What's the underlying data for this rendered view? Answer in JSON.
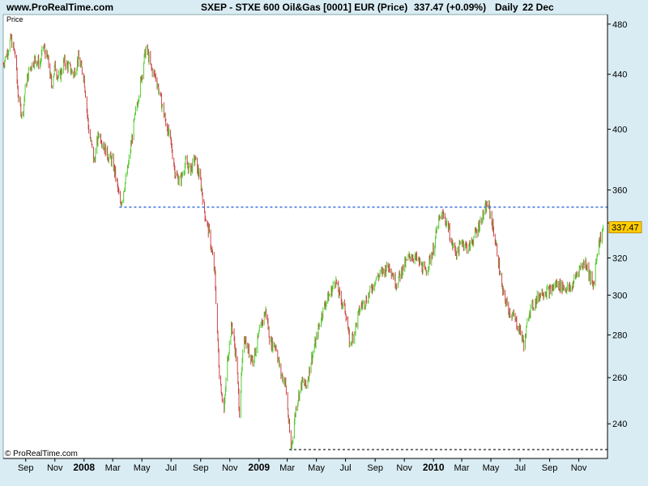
{
  "header": {
    "site": "www.ProRealTime.com",
    "instrument": "SXEP - STXE 600 Oil&Gas [0001] EUR (Price)",
    "last_change": "337.47 (+0.09%)",
    "period": "Daily",
    "date": "22 Dec"
  },
  "panel_label": "Price",
  "copyright": "© ProRealTime.com",
  "colors": {
    "up": "#55cc33",
    "down": "#cc4444",
    "support_line": "#4477dd",
    "low_line": "#555555",
    "price_tag": "#ffcc00",
    "background": "#d9ecf3",
    "plot": "#ffffff"
  },
  "chart_data": {
    "type": "line",
    "title": "SXEP - STXE 600 Oil&Gas [0001] EUR (Price)",
    "ylim": [
      226,
      488
    ],
    "y_ticks": [
      240,
      260,
      280,
      300,
      320,
      340,
      360,
      400,
      440,
      480
    ],
    "y_tick_labels": [
      "240",
      "260",
      "280",
      "300",
      "320",
      "",
      "360",
      "400",
      "440",
      "480"
    ],
    "x_tick_labels": [
      "Sep",
      "Nov",
      "2008",
      "Mar",
      "May",
      "Jul",
      "Sep",
      "Nov",
      "2009",
      "Mar",
      "May",
      "Jul",
      "Sep",
      "Nov",
      "2010",
      "Mar",
      "May",
      "Jul",
      "Sep",
      "Nov"
    ],
    "x_tick_bold": [
      false,
      false,
      true,
      false,
      false,
      false,
      false,
      false,
      true,
      false,
      false,
      false,
      false,
      false,
      true,
      false,
      false,
      false,
      false,
      false
    ],
    "x_ticks": [
      "2007-09-01",
      "2007-11-01",
      "2008-01-01",
      "2008-03-01",
      "2008-05-01",
      "2008-07-01",
      "2008-09-01",
      "2008-11-01",
      "2009-01-01",
      "2009-03-01",
      "2009-05-01",
      "2009-07-01",
      "2009-09-01",
      "2009-11-01",
      "2010-01-01",
      "2010-03-01",
      "2010-05-01",
      "2010-07-01",
      "2010-09-01",
      "2010-11-01"
    ],
    "x_range": [
      "2007-07-16",
      "2010-12-31"
    ],
    "last_price": 337.47,
    "last_price_label": "337.47",
    "reference_lines": [
      {
        "name": "support",
        "y": 349.5,
        "x_start": "2008-03-15",
        "x_end": "2010-12-31"
      },
      {
        "name": "low",
        "y": 229.5,
        "x_start": "2009-03-05",
        "x_end": "2010-12-31"
      }
    ],
    "series": [
      {
        "x": [
          "2007-07-16",
          "2007-07-25",
          "2007-08-01",
          "2007-08-10",
          "2007-08-16",
          "2007-08-25",
          "2007-09-01",
          "2007-09-10",
          "2007-09-20",
          "2007-10-01",
          "2007-10-08",
          "2007-10-18",
          "2007-10-25",
          "2007-11-01",
          "2007-11-10",
          "2007-11-20",
          "2007-12-01",
          "2007-12-10",
          "2007-12-20",
          "2008-01-01",
          "2008-01-10",
          "2008-01-22",
          "2008-02-01",
          "2008-02-10",
          "2008-02-20",
          "2008-03-01",
          "2008-03-10",
          "2008-03-17",
          "2008-04-01",
          "2008-04-15",
          "2008-05-01",
          "2008-05-10",
          "2008-05-20",
          "2008-06-01",
          "2008-06-10",
          "2008-06-20",
          "2008-07-01",
          "2008-07-10",
          "2008-07-20",
          "2008-08-01",
          "2008-08-10",
          "2008-08-20",
          "2008-09-01",
          "2008-09-10",
          "2008-09-20",
          "2008-10-01",
          "2008-10-05",
          "2008-10-10",
          "2008-10-20",
          "2008-10-27",
          "2008-11-05",
          "2008-11-15",
          "2008-11-21",
          "2008-12-01",
          "2008-12-10",
          "2008-12-20",
          "2009-01-06",
          "2009-01-15",
          "2009-01-25",
          "2009-02-05",
          "2009-02-15",
          "2009-02-25",
          "2009-03-09",
          "2009-03-20",
          "2009-04-01",
          "2009-04-10",
          "2009-04-20",
          "2009-05-01",
          "2009-05-10",
          "2009-05-20",
          "2009-06-01",
          "2009-06-10",
          "2009-06-20",
          "2009-07-01",
          "2009-07-10",
          "2009-07-20",
          "2009-08-01",
          "2009-08-15",
          "2009-09-01",
          "2009-09-15",
          "2009-10-01",
          "2009-10-15",
          "2009-11-01",
          "2009-11-15",
          "2009-12-01",
          "2009-12-15",
          "2010-01-01",
          "2010-01-11",
          "2010-01-20",
          "2010-02-01",
          "2010-02-08",
          "2010-02-20",
          "2010-03-01",
          "2010-03-15",
          "2010-04-01",
          "2010-04-15",
          "2010-04-25",
          "2010-05-05",
          "2010-05-15",
          "2010-05-25",
          "2010-06-08",
          "2010-06-20",
          "2010-07-01",
          "2010-07-10",
          "2010-07-20",
          "2010-08-01",
          "2010-08-15",
          "2010-09-01",
          "2010-09-15",
          "2010-10-01",
          "2010-10-15",
          "2010-11-01",
          "2010-11-15",
          "2010-12-01",
          "2010-12-10",
          "2010-12-22"
        ],
        "y": [
          448,
          458,
          468,
          455,
          425,
          408,
          432,
          445,
          452,
          448,
          462,
          450,
          432,
          446,
          436,
          450,
          445,
          440,
          452,
          438,
          402,
          378,
          398,
          390,
          382,
          378,
          364,
          350,
          372,
          405,
          440,
          462,
          445,
          436,
          420,
          405,
          390,
          370,
          365,
          378,
          372,
          380,
          365,
          345,
          332,
          310,
          286,
          262,
          245,
          268,
          285,
          268,
          245,
          280,
          272,
          268,
          285,
          292,
          276,
          275,
          262,
          258,
          229,
          248,
          258,
          256,
          268,
          278,
          288,
          296,
          302,
          308,
          298,
          292,
          275,
          282,
          294,
          298,
          308,
          312,
          316,
          306,
          316,
          322,
          318,
          312,
          325,
          340,
          345,
          338,
          328,
          322,
          330,
          325,
          335,
          345,
          352,
          338,
          322,
          302,
          292,
          288,
          282,
          275,
          292,
          296,
          302,
          302,
          306,
          304,
          303,
          314,
          318,
          304,
          325,
          337.47
        ]
      }
    ]
  }
}
